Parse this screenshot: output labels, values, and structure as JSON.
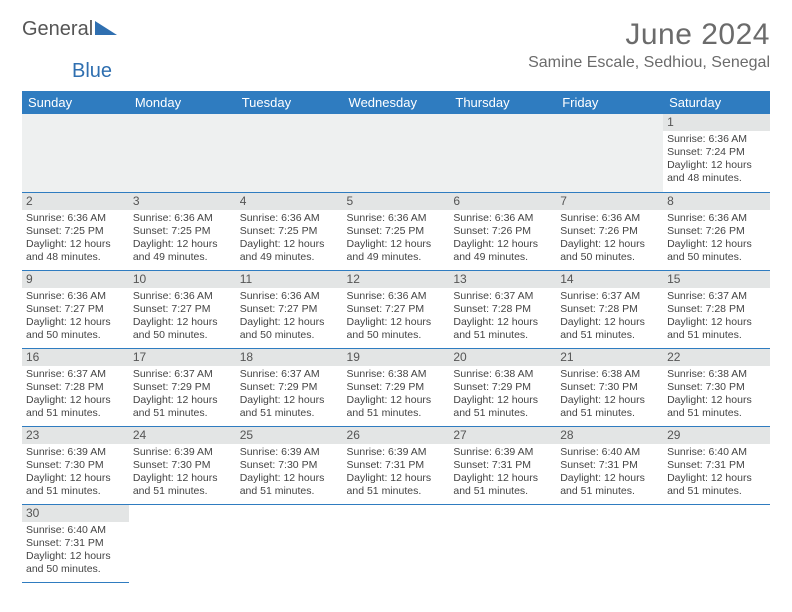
{
  "logo": {
    "text1": "General",
    "text2": "Blue",
    "triangle_color": "#2f6fb0"
  },
  "title": "June 2024",
  "location": "Samine Escale, Sedhiou, Senegal",
  "colors": {
    "header_bg": "#2f7cc0",
    "header_fg": "#ffffff",
    "daynum_bg": "#e3e5e5",
    "rule": "#2f7cc0",
    "text_muted": "#6b6b6b"
  },
  "weekdays": [
    "Sunday",
    "Monday",
    "Tuesday",
    "Wednesday",
    "Thursday",
    "Friday",
    "Saturday"
  ],
  "weeks": [
    [
      null,
      null,
      null,
      null,
      null,
      null,
      {
        "n": "1",
        "sr": "Sunrise: 6:36 AM",
        "ss": "Sunset: 7:24 PM",
        "dl": "Daylight: 12 hours and 48 minutes."
      }
    ],
    [
      {
        "n": "2",
        "sr": "Sunrise: 6:36 AM",
        "ss": "Sunset: 7:25 PM",
        "dl": "Daylight: 12 hours and 48 minutes."
      },
      {
        "n": "3",
        "sr": "Sunrise: 6:36 AM",
        "ss": "Sunset: 7:25 PM",
        "dl": "Daylight: 12 hours and 49 minutes."
      },
      {
        "n": "4",
        "sr": "Sunrise: 6:36 AM",
        "ss": "Sunset: 7:25 PM",
        "dl": "Daylight: 12 hours and 49 minutes."
      },
      {
        "n": "5",
        "sr": "Sunrise: 6:36 AM",
        "ss": "Sunset: 7:25 PM",
        "dl": "Daylight: 12 hours and 49 minutes."
      },
      {
        "n": "6",
        "sr": "Sunrise: 6:36 AM",
        "ss": "Sunset: 7:26 PM",
        "dl": "Daylight: 12 hours and 49 minutes."
      },
      {
        "n": "7",
        "sr": "Sunrise: 6:36 AM",
        "ss": "Sunset: 7:26 PM",
        "dl": "Daylight: 12 hours and 50 minutes."
      },
      {
        "n": "8",
        "sr": "Sunrise: 6:36 AM",
        "ss": "Sunset: 7:26 PM",
        "dl": "Daylight: 12 hours and 50 minutes."
      }
    ],
    [
      {
        "n": "9",
        "sr": "Sunrise: 6:36 AM",
        "ss": "Sunset: 7:27 PM",
        "dl": "Daylight: 12 hours and 50 minutes."
      },
      {
        "n": "10",
        "sr": "Sunrise: 6:36 AM",
        "ss": "Sunset: 7:27 PM",
        "dl": "Daylight: 12 hours and 50 minutes."
      },
      {
        "n": "11",
        "sr": "Sunrise: 6:36 AM",
        "ss": "Sunset: 7:27 PM",
        "dl": "Daylight: 12 hours and 50 minutes."
      },
      {
        "n": "12",
        "sr": "Sunrise: 6:36 AM",
        "ss": "Sunset: 7:27 PM",
        "dl": "Daylight: 12 hours and 50 minutes."
      },
      {
        "n": "13",
        "sr": "Sunrise: 6:37 AM",
        "ss": "Sunset: 7:28 PM",
        "dl": "Daylight: 12 hours and 51 minutes."
      },
      {
        "n": "14",
        "sr": "Sunrise: 6:37 AM",
        "ss": "Sunset: 7:28 PM",
        "dl": "Daylight: 12 hours and 51 minutes."
      },
      {
        "n": "15",
        "sr": "Sunrise: 6:37 AM",
        "ss": "Sunset: 7:28 PM",
        "dl": "Daylight: 12 hours and 51 minutes."
      }
    ],
    [
      {
        "n": "16",
        "sr": "Sunrise: 6:37 AM",
        "ss": "Sunset: 7:28 PM",
        "dl": "Daylight: 12 hours and 51 minutes."
      },
      {
        "n": "17",
        "sr": "Sunrise: 6:37 AM",
        "ss": "Sunset: 7:29 PM",
        "dl": "Daylight: 12 hours and 51 minutes."
      },
      {
        "n": "18",
        "sr": "Sunrise: 6:37 AM",
        "ss": "Sunset: 7:29 PM",
        "dl": "Daylight: 12 hours and 51 minutes."
      },
      {
        "n": "19",
        "sr": "Sunrise: 6:38 AM",
        "ss": "Sunset: 7:29 PM",
        "dl": "Daylight: 12 hours and 51 minutes."
      },
      {
        "n": "20",
        "sr": "Sunrise: 6:38 AM",
        "ss": "Sunset: 7:29 PM",
        "dl": "Daylight: 12 hours and 51 minutes."
      },
      {
        "n": "21",
        "sr": "Sunrise: 6:38 AM",
        "ss": "Sunset: 7:30 PM",
        "dl": "Daylight: 12 hours and 51 minutes."
      },
      {
        "n": "22",
        "sr": "Sunrise: 6:38 AM",
        "ss": "Sunset: 7:30 PM",
        "dl": "Daylight: 12 hours and 51 minutes."
      }
    ],
    [
      {
        "n": "23",
        "sr": "Sunrise: 6:39 AM",
        "ss": "Sunset: 7:30 PM",
        "dl": "Daylight: 12 hours and 51 minutes."
      },
      {
        "n": "24",
        "sr": "Sunrise: 6:39 AM",
        "ss": "Sunset: 7:30 PM",
        "dl": "Daylight: 12 hours and 51 minutes."
      },
      {
        "n": "25",
        "sr": "Sunrise: 6:39 AM",
        "ss": "Sunset: 7:30 PM",
        "dl": "Daylight: 12 hours and 51 minutes."
      },
      {
        "n": "26",
        "sr": "Sunrise: 6:39 AM",
        "ss": "Sunset: 7:31 PM",
        "dl": "Daylight: 12 hours and 51 minutes."
      },
      {
        "n": "27",
        "sr": "Sunrise: 6:39 AM",
        "ss": "Sunset: 7:31 PM",
        "dl": "Daylight: 12 hours and 51 minutes."
      },
      {
        "n": "28",
        "sr": "Sunrise: 6:40 AM",
        "ss": "Sunset: 7:31 PM",
        "dl": "Daylight: 12 hours and 51 minutes."
      },
      {
        "n": "29",
        "sr": "Sunrise: 6:40 AM",
        "ss": "Sunset: 7:31 PM",
        "dl": "Daylight: 12 hours and 51 minutes."
      }
    ],
    [
      {
        "n": "30",
        "sr": "Sunrise: 6:40 AM",
        "ss": "Sunset: 7:31 PM",
        "dl": "Daylight: 12 hours and 50 minutes."
      },
      null,
      null,
      null,
      null,
      null,
      null
    ]
  ]
}
